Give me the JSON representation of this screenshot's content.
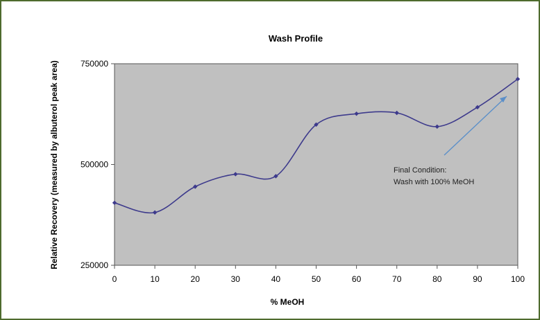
{
  "chart_data": {
    "type": "line",
    "title": "Wash Profile",
    "xlabel": "% MeOH",
    "ylabel": "Relative Recovery (measured by albuterol peak area)",
    "x": [
      0,
      10,
      20,
      30,
      40,
      50,
      60,
      70,
      80,
      90,
      100
    ],
    "y": [
      405000,
      381000,
      445000,
      476000,
      471000,
      599000,
      626000,
      628000,
      594000,
      642000,
      712000
    ],
    "xlim": [
      0,
      100
    ],
    "ylim": [
      250000,
      750000
    ],
    "xticks": [
      "0",
      "10",
      "20",
      "30",
      "40",
      "50",
      "60",
      "70",
      "80",
      "90",
      "100"
    ],
    "yticks": [
      "250000",
      "500000",
      "750000"
    ],
    "grid": false,
    "plot_background": "#c0c0c0",
    "line_color": "#3d3a8c",
    "annotation": {
      "lines": [
        "Final Condition:",
        "Wash with 100% MeOH"
      ],
      "arrow_color": "#5b8fc9"
    }
  }
}
